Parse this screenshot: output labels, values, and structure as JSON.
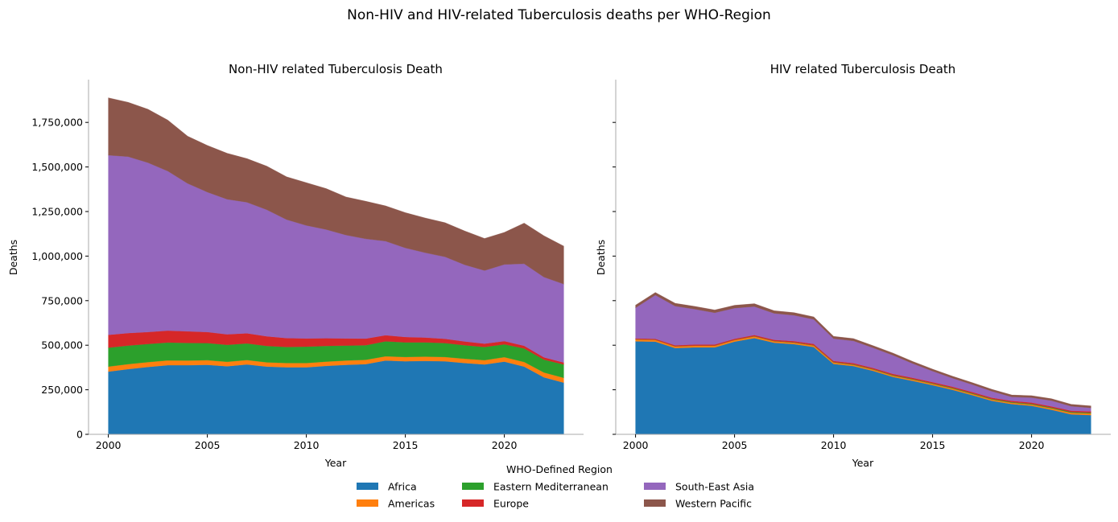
{
  "figure": {
    "suptitle": "Non-HIV and HIV-related Tuberculosis deaths per WHO-Region"
  },
  "chart_data": [
    {
      "type": "area",
      "stacked": true,
      "title": "Non-HIV related Tuberculosis Death",
      "xlabel": "Year",
      "ylabel": "Deaths",
      "xlim": [
        1999,
        2024
      ],
      "ylim": [
        0,
        1990000
      ],
      "xticks": [
        2000,
        2005,
        2010,
        2015,
        2020
      ],
      "xtick_labels": [
        "2000",
        "2005",
        "2010",
        "2015",
        "2020"
      ],
      "yticks": [
        0,
        250000,
        500000,
        750000,
        1000000,
        1250000,
        1500000,
        1750000
      ],
      "ytick_labels": [
        "0",
        "250,000",
        "500,000",
        "750,000",
        "1,000,000",
        "1,250,000",
        "1,500,000",
        "1,750,000"
      ],
      "grid": false,
      "x": [
        2000,
        2001,
        2002,
        2003,
        2004,
        2005,
        2006,
        2007,
        2008,
        2009,
        2010,
        2011,
        2012,
        2013,
        2014,
        2015,
        2016,
        2017,
        2018,
        2019,
        2020,
        2021,
        2022,
        2023
      ],
      "series": [
        {
          "name": "Africa",
          "color": "#1f77b4",
          "values": [
            352000,
            366000,
            378000,
            388000,
            388000,
            390000,
            382000,
            392000,
            380000,
            376000,
            376000,
            384000,
            390000,
            394000,
            414000,
            410000,
            412000,
            410000,
            400000,
            392000,
            408000,
            380000,
            320000,
            290000
          ]
        },
        {
          "name": "Americas",
          "color": "#ff7f0e",
          "values": [
            28000,
            28000,
            27000,
            27000,
            26000,
            26000,
            25000,
            25000,
            24000,
            24000,
            24000,
            24000,
            24000,
            24000,
            24000,
            24000,
            24000,
            24000,
            24000,
            24000,
            25000,
            26000,
            27000,
            27000
          ]
        },
        {
          "name": "Eastern Mediterranean",
          "color": "#2ca02c",
          "values": [
            106000,
            104000,
            102000,
            100000,
            99000,
            96000,
            95000,
            93000,
            92000,
            90000,
            92000,
            88000,
            84000,
            82000,
            84000,
            82000,
            80000,
            78000,
            76000,
            74000,
            72000,
            76000,
            72000,
            75000
          ]
        },
        {
          "name": "Europe",
          "color": "#d62728",
          "values": [
            72000,
            70000,
            67000,
            67000,
            65000,
            62000,
            59000,
            57000,
            54000,
            50000,
            46000,
            43000,
            40000,
            37000,
            34000,
            30000,
            27000,
            24000,
            21000,
            19000,
            18000,
            15000,
            13000,
            11000
          ]
        },
        {
          "name": "South-East Asia",
          "color": "#9467bd",
          "values": [
            1008000,
            990000,
            950000,
            895000,
            830000,
            785000,
            758000,
            735000,
            710000,
            665000,
            634000,
            610000,
            580000,
            560000,
            528000,
            500000,
            476000,
            460000,
            430000,
            410000,
            430000,
            460000,
            450000,
            440000
          ]
        },
        {
          "name": "Western Pacific",
          "color": "#8c564b",
          "values": [
            322000,
            305000,
            300000,
            286000,
            265000,
            262000,
            258000,
            245000,
            245000,
            240000,
            240000,
            230000,
            214000,
            211000,
            198000,
            198000,
            195000,
            192000,
            190000,
            180000,
            180000,
            228000,
            232000,
            213000
          ]
        }
      ]
    },
    {
      "type": "area",
      "stacked": true,
      "title": "HIV related Tuberculosis Death",
      "xlabel": "Year",
      "ylabel": "Deaths",
      "xlim": [
        1999,
        2024
      ],
      "ylim": [
        0,
        1990000
      ],
      "xticks": [
        2000,
        2005,
        2010,
        2015,
        2020
      ],
      "xtick_labels": [
        "2000",
        "2005",
        "2010",
        "2015",
        "2020"
      ],
      "yticks": [
        0,
        250000,
        500000,
        750000,
        1000000,
        1250000,
        1500000,
        1750000
      ],
      "ytick_labels": [],
      "grid": false,
      "x": [
        2000,
        2001,
        2002,
        2003,
        2004,
        2005,
        2006,
        2007,
        2008,
        2009,
        2010,
        2011,
        2012,
        2013,
        2014,
        2015,
        2016,
        2017,
        2018,
        2019,
        2020,
        2021,
        2022,
        2023
      ],
      "series": [
        {
          "name": "Africa",
          "color": "#1f77b4",
          "values": [
            522000,
            520000,
            484000,
            488000,
            488000,
            520000,
            540000,
            514000,
            506000,
            490000,
            395000,
            383000,
            356000,
            322000,
            300000,
            276000,
            250000,
            220000,
            188000,
            170000,
            160000,
            138000,
            112000,
            108000
          ]
        },
        {
          "name": "Americas",
          "color": "#ff7f0e",
          "values": [
            10000,
            10000,
            9000,
            9000,
            9000,
            9000,
            9000,
            8000,
            8000,
            8000,
            8000,
            7000,
            7000,
            7000,
            7000,
            7000,
            7000,
            7000,
            7000,
            7000,
            7000,
            8000,
            9000,
            9000
          ]
        },
        {
          "name": "Eastern Mediterranean",
          "color": "#2ca02c",
          "values": [
            1000,
            1000,
            1000,
            1000,
            1000,
            1000,
            1500,
            1500,
            2000,
            2000,
            2000,
            2500,
            2500,
            3000,
            3000,
            3000,
            3500,
            3500,
            3500,
            4000,
            4000,
            4000,
            4500,
            4500
          ]
        },
        {
          "name": "Europe",
          "color": "#d62728",
          "values": [
            5000,
            5000,
            5500,
            6000,
            6000,
            6000,
            6500,
            7000,
            7000,
            7000,
            7000,
            7000,
            7000,
            7000,
            7000,
            7000,
            7000,
            7000,
            7000,
            7000,
            7000,
            7000,
            7000,
            7000
          ]
        },
        {
          "name": "South-East Asia",
          "color": "#9467bd",
          "values": [
            172000,
            245000,
            220000,
            198000,
            178000,
            172000,
            160000,
            148000,
            145000,
            138000,
            125000,
            125000,
            113000,
            105000,
            80000,
            62000,
            48000,
            42000,
            36000,
            22000,
            28000,
            32000,
            25000,
            20000
          ]
        },
        {
          "name": "Western Pacific",
          "color": "#8c564b",
          "values": [
            15000,
            15000,
            16000,
            16000,
            16000,
            16000,
            16000,
            15000,
            15000,
            14000,
            13000,
            13000,
            12000,
            12000,
            12000,
            11000,
            11000,
            11000,
            11000,
            11000,
            11000,
            11000,
            11000,
            11000
          ]
        }
      ]
    }
  ],
  "legend": {
    "title": "WHO-Defined Region",
    "placement": "bottom-center",
    "items": [
      {
        "label": "Africa",
        "color": "#1f77b4"
      },
      {
        "label": "Americas",
        "color": "#ff7f0e"
      },
      {
        "label": "Eastern Mediterranean",
        "color": "#2ca02c"
      },
      {
        "label": "Europe",
        "color": "#d62728"
      },
      {
        "label": "South-East Asia",
        "color": "#9467bd"
      },
      {
        "label": "Western Pacific",
        "color": "#8c564b"
      }
    ]
  }
}
